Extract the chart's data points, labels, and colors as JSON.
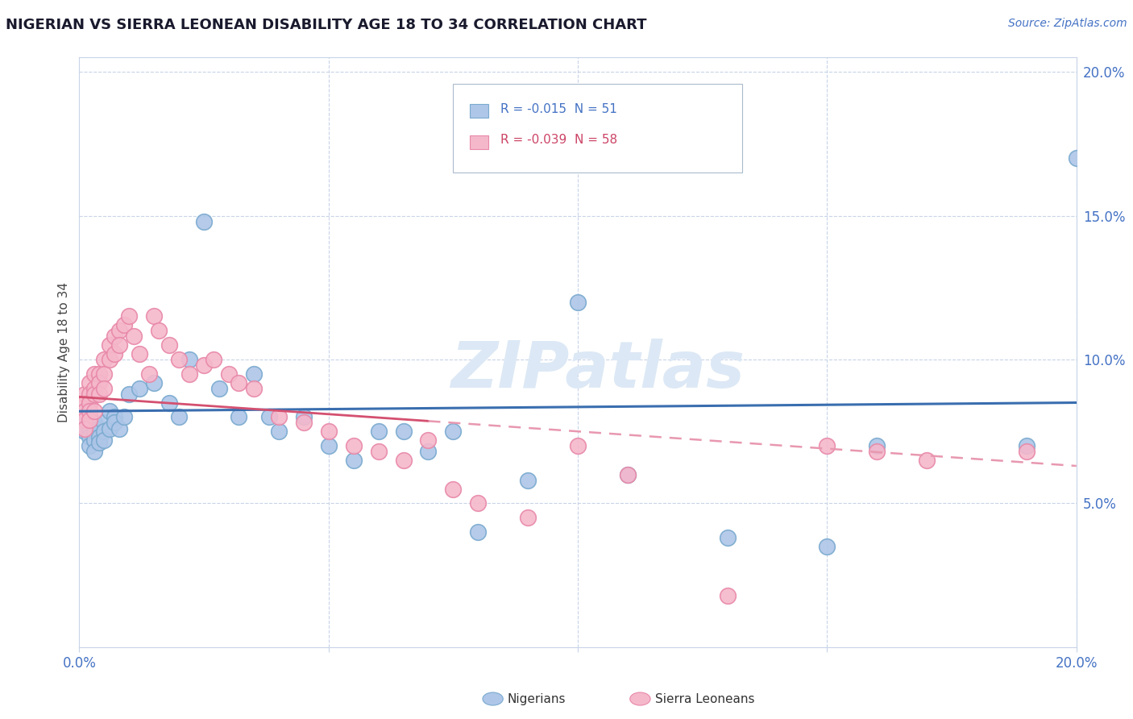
{
  "title": "NIGERIAN VS SIERRA LEONEAN DISABILITY AGE 18 TO 34 CORRELATION CHART",
  "source": "Source: ZipAtlas.com",
  "ylabel": "Disability Age 18 to 34",
  "watermark": "ZIPatlas",
  "legend1_label": "Nigerians",
  "legend2_label": "Sierra Leoneans",
  "R_nigerian": -0.015,
  "N_nigerian": 51,
  "R_sierraleonean": -0.039,
  "N_sierraleonean": 58,
  "nigerian_color": "#aec6e8",
  "sierraleonean_color": "#f5b8cb",
  "nigerian_edge_color": "#7aaacf",
  "sierraleonean_edge_color": "#e888a8",
  "nigerian_line_color": "#3a6eaf",
  "sierraleonean_line_solid_color": "#d45070",
  "sierraleonean_line_dash_color": "#e898b0",
  "xlim": [
    0.0,
    0.2
  ],
  "ylim": [
    0.0,
    0.205
  ],
  "nigerian_x": [
    0.001,
    0.001,
    0.001,
    0.002,
    0.002,
    0.002,
    0.002,
    0.003,
    0.003,
    0.003,
    0.003,
    0.004,
    0.004,
    0.004,
    0.005,
    0.005,
    0.005,
    0.006,
    0.006,
    0.007,
    0.007,
    0.008,
    0.009,
    0.01,
    0.012,
    0.015,
    0.018,
    0.02,
    0.022,
    0.025,
    0.028,
    0.032,
    0.035,
    0.038,
    0.04,
    0.045,
    0.05,
    0.055,
    0.06,
    0.065,
    0.07,
    0.075,
    0.08,
    0.09,
    0.1,
    0.11,
    0.13,
    0.15,
    0.16,
    0.19,
    0.2
  ],
  "nigerian_y": [
    0.082,
    0.078,
    0.075,
    0.08,
    0.076,
    0.073,
    0.07,
    0.078,
    0.075,
    0.072,
    0.068,
    0.076,
    0.073,
    0.071,
    0.078,
    0.075,
    0.072,
    0.082,
    0.076,
    0.08,
    0.078,
    0.076,
    0.08,
    0.088,
    0.09,
    0.092,
    0.085,
    0.08,
    0.1,
    0.148,
    0.09,
    0.08,
    0.095,
    0.08,
    0.075,
    0.08,
    0.07,
    0.065,
    0.075,
    0.075,
    0.068,
    0.075,
    0.04,
    0.058,
    0.12,
    0.06,
    0.038,
    0.035,
    0.07,
    0.07,
    0.17
  ],
  "sierraleonean_x": [
    0.001,
    0.001,
    0.001,
    0.001,
    0.001,
    0.002,
    0.002,
    0.002,
    0.002,
    0.002,
    0.003,
    0.003,
    0.003,
    0.003,
    0.004,
    0.004,
    0.004,
    0.005,
    0.005,
    0.005,
    0.006,
    0.006,
    0.007,
    0.007,
    0.008,
    0.008,
    0.009,
    0.01,
    0.011,
    0.012,
    0.014,
    0.015,
    0.016,
    0.018,
    0.02,
    0.022,
    0.025,
    0.027,
    0.03,
    0.032,
    0.035,
    0.04,
    0.045,
    0.05,
    0.055,
    0.06,
    0.065,
    0.07,
    0.075,
    0.08,
    0.09,
    0.1,
    0.11,
    0.13,
    0.15,
    0.16,
    0.17,
    0.19
  ],
  "sierraleonean_y": [
    0.088,
    0.085,
    0.082,
    0.079,
    0.076,
    0.092,
    0.088,
    0.085,
    0.082,
    0.079,
    0.095,
    0.09,
    0.088,
    0.082,
    0.095,
    0.092,
    0.088,
    0.1,
    0.095,
    0.09,
    0.105,
    0.1,
    0.108,
    0.102,
    0.11,
    0.105,
    0.112,
    0.115,
    0.108,
    0.102,
    0.095,
    0.115,
    0.11,
    0.105,
    0.1,
    0.095,
    0.098,
    0.1,
    0.095,
    0.092,
    0.09,
    0.08,
    0.078,
    0.075,
    0.07,
    0.068,
    0.065,
    0.072,
    0.055,
    0.05,
    0.045,
    0.07,
    0.06,
    0.018,
    0.07,
    0.068,
    0.065,
    0.068
  ]
}
